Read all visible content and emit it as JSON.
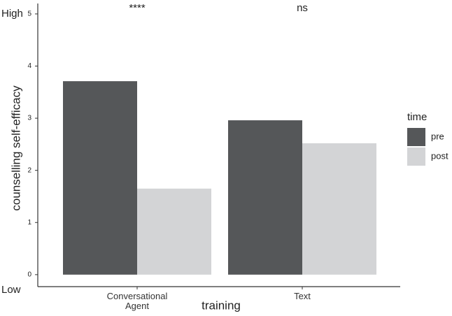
{
  "chart_data": {
    "type": "bar",
    "x_label": "training",
    "y_label": "counselling self-efficacy",
    "categories": [
      "Conversational\nAgent",
      "Text"
    ],
    "series": [
      {
        "name": "pre",
        "color": "#555759",
        "values": [
          3.71,
          2.96
        ]
      },
      {
        "name": "post",
        "color": "#d3d4d6",
        "values": [
          1.65,
          2.52
        ]
      }
    ],
    "legend_title": "time",
    "ylim": [
      -0.23,
      5.2
    ],
    "yticks": [
      0,
      1,
      2,
      3,
      4,
      5
    ],
    "annotations": [
      {
        "text": "High",
        "value": 5
      },
      {
        "text": "Low",
        "value": -0.3
      }
    ],
    "significance": [
      "****",
      "ns"
    ]
  }
}
